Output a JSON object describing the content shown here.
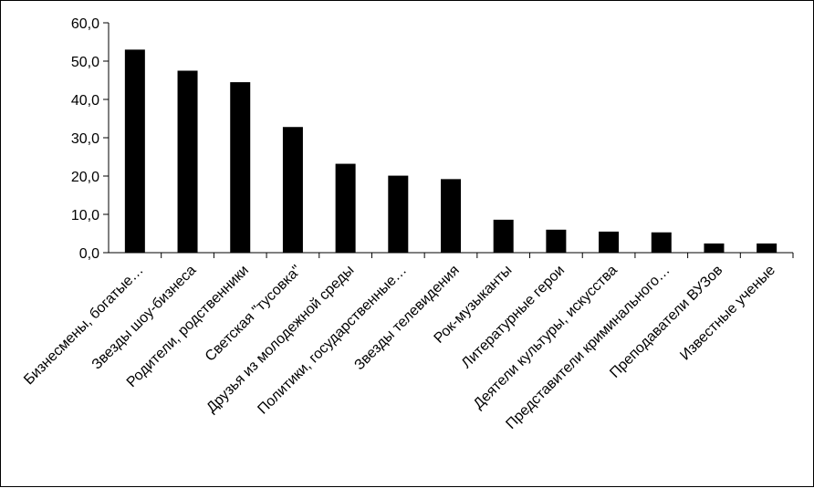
{
  "chart_data": {
    "type": "bar",
    "categories": [
      "Бизнесмены, богатые…",
      "Звезды шоу-бизнеса",
      "Родители, родственники",
      "Светская \"тусовка\"",
      "Друзья из молодежной среды",
      "Политики, государственные…",
      "Звезды телевидения",
      "Рок-музыканты",
      "Литературные герои",
      "Деятели культуры, искусства",
      "Представители криминального…",
      "Преподаватели ВУЗов",
      "Известные ученые"
    ],
    "values": [
      53.0,
      47.5,
      44.5,
      32.8,
      23.2,
      20.1,
      19.2,
      8.6,
      6.0,
      5.5,
      5.3,
      2.4,
      2.4
    ],
    "ylim": [
      0,
      60
    ],
    "yticks": [
      0,
      10,
      20,
      30,
      40,
      50,
      60
    ],
    "ytick_labels": [
      "0,0",
      "10,0",
      "20,0",
      "30,0",
      "40,0",
      "50,0",
      "60,0"
    ],
    "grid": false,
    "legend": "none",
    "bar_color": "#000000"
  }
}
